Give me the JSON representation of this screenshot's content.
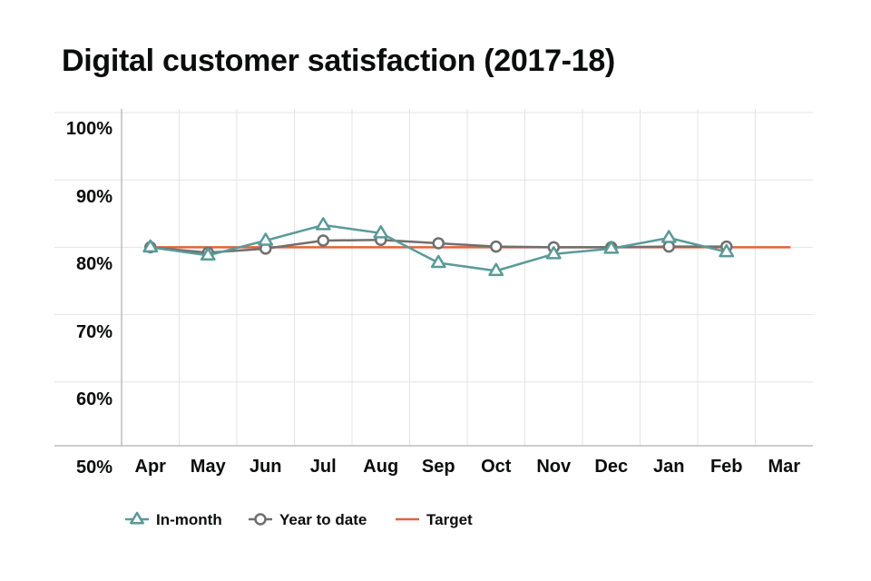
{
  "title": "Digital customer satisfaction (2017-18)",
  "chart_data": {
    "type": "line",
    "title": "Digital customer satisfaction (2017-18)",
    "xlabel": "",
    "ylabel": "",
    "categories": [
      "Apr",
      "May",
      "Jun",
      "Jul",
      "Aug",
      "Sep",
      "Oct",
      "Nov",
      "Dec",
      "Jan",
      "Feb",
      "Mar"
    ],
    "y_ticks": [
      "50%",
      "60%",
      "70%",
      "80%",
      "90%",
      "100%"
    ],
    "ylim": [
      50,
      100
    ],
    "grid": true,
    "legend_position": "bottom-left",
    "series": [
      {
        "name": "In-month",
        "marker": "triangle",
        "color": "#5a9a99",
        "values": [
          80.0,
          78.8,
          81.0,
          83.3,
          82.1,
          77.7,
          76.5,
          79.0,
          79.8,
          81.4,
          79.3,
          null
        ]
      },
      {
        "name": "Year to date",
        "marker": "circle",
        "color": "#6f6f6f",
        "values": [
          80.0,
          79.2,
          79.8,
          81.0,
          81.1,
          80.6,
          80.1,
          80.0,
          80.0,
          80.1,
          80.1,
          null
        ]
      },
      {
        "name": "Target",
        "marker": "none",
        "color": "#e0643c",
        "values": [
          80,
          80,
          80,
          80,
          80,
          80,
          80,
          80,
          80,
          80,
          80,
          80
        ]
      }
    ]
  }
}
